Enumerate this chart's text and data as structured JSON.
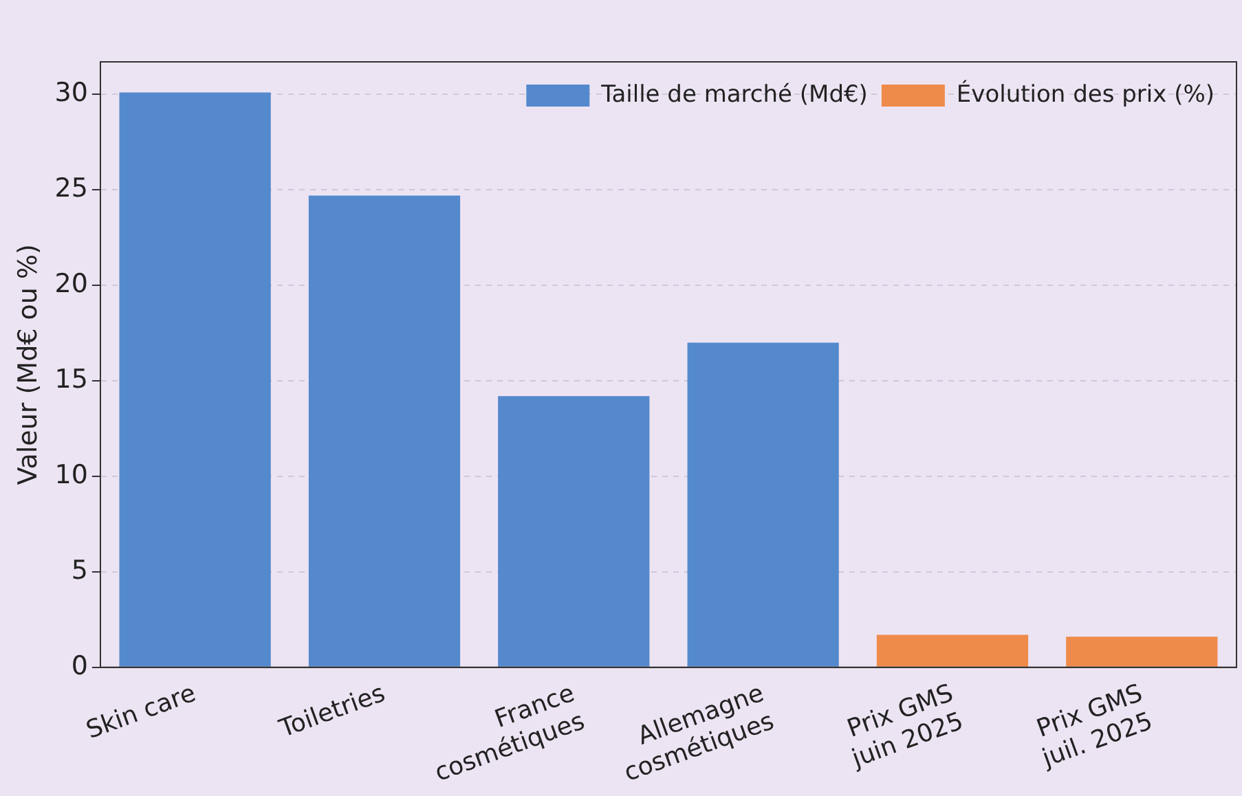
{
  "chart_data": {
    "type": "bar",
    "ylabel": "Valeur (Md€ ou %)",
    "categories": [
      "Skin care",
      "Toiletries",
      "France\ncosmétiques",
      "Allemagne\ncosmétiques",
      "Prix GMS\njuin 2025",
      "Prix GMS\njuil. 2025"
    ],
    "series": [
      {
        "name": "Taille de marché (Md€)",
        "color": "#5589cd",
        "values": [
          30.1,
          24.7,
          14.2,
          17.0,
          null,
          null
        ]
      },
      {
        "name": "Évolution des prix (%)",
        "color": "#ee8b4b",
        "values": [
          null,
          null,
          null,
          null,
          1.7,
          1.6
        ]
      }
    ],
    "ylim": [
      0,
      31.7
    ],
    "yticks": [
      0,
      5,
      10,
      15,
      20,
      25,
      30
    ],
    "grid": "y",
    "legend": "top right"
  }
}
